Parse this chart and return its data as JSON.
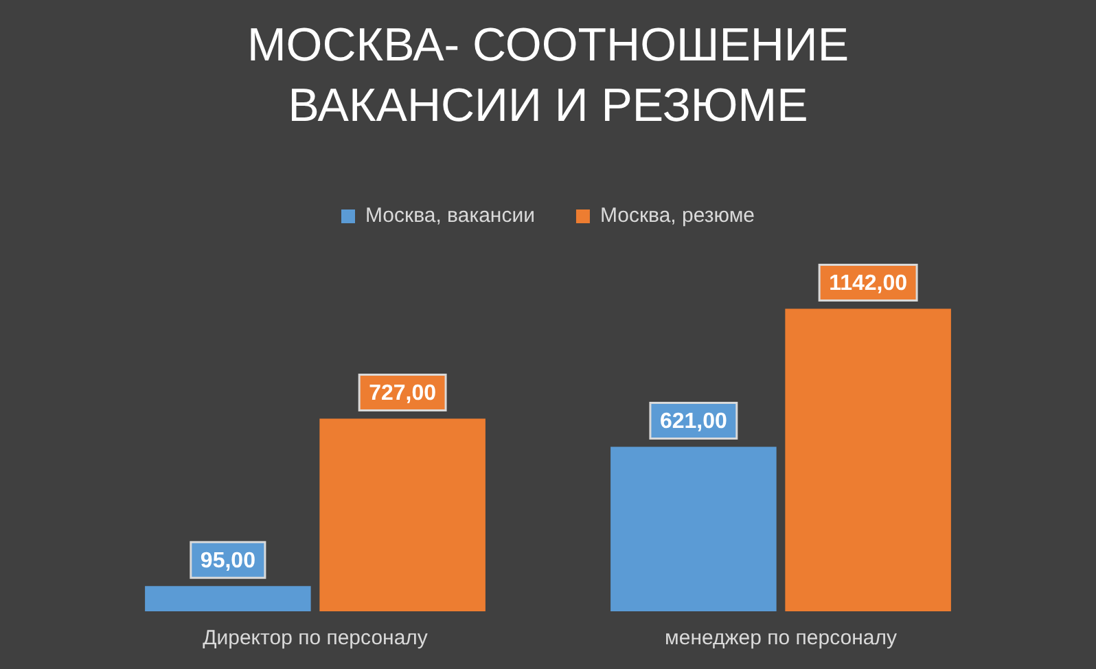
{
  "chart_data": {
    "type": "bar",
    "title": "МОСКВА- СООТНОШЕНИЕ ВАКАНСИИ И РЕЗЮМЕ",
    "categories": [
      "Директор по персоналу",
      "менеджер по персоналу"
    ],
    "series": [
      {
        "name": "Москва, вакансии",
        "color": "#5b9bd5",
        "values": [
          95,
          621
        ],
        "value_labels": [
          "95,00",
          "621,00"
        ]
      },
      {
        "name": "Москва, резюме",
        "color": "#ed7d31",
        "values": [
          727,
          1142
        ],
        "value_labels": [
          "727,00",
          "1142,00"
        ]
      }
    ],
    "legend": "top",
    "grid": false
  }
}
